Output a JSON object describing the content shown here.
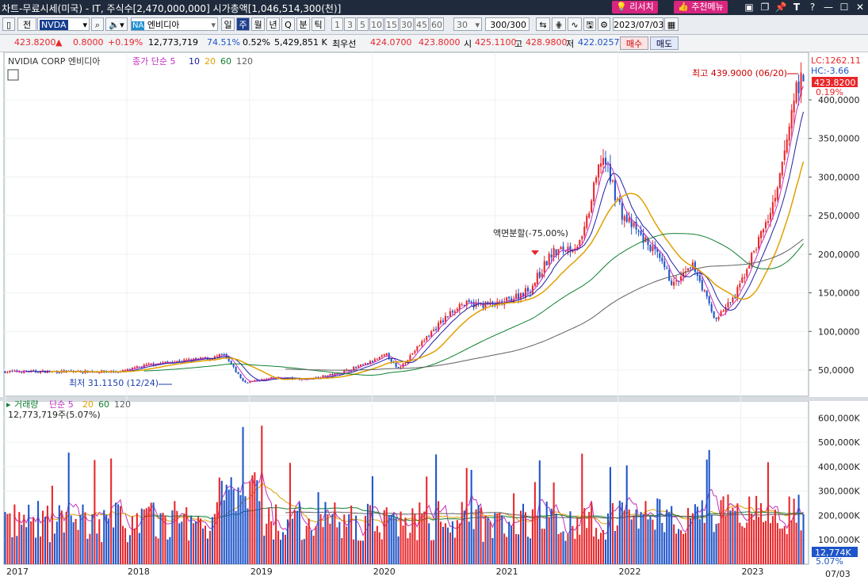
{
  "window": {
    "title": "차트-무료시세(미국) - IT, 주식수[2,470,000,000] 시가총액[1,046,514,300(천)]",
    "research_btn": "리서치",
    "recommend_btn": "추천메뉴"
  },
  "toolbar": {
    "jeon_label": "전",
    "symbol_value": "NVDA",
    "market_tag": "NA",
    "stock_name": "엔비디아",
    "period_tabs": [
      "일",
      "주",
      "월",
      "년",
      "Q",
      "분",
      "틱"
    ],
    "active_period": "주",
    "interval_buttons": [
      "1",
      "3",
      "5",
      "10",
      "15",
      "30",
      "45",
      "60"
    ],
    "interval_select": "30",
    "count_value": "300/300",
    "date_value": "2023/07/03"
  },
  "quote": {
    "price": "423.8200",
    "up_arrow": "▲",
    "change": "0.8000",
    "change_pct": "+0.19%",
    "volume": "12,773,719",
    "ratio1": "74.51%",
    "ratio2": "0.52%",
    "amount": "5,429,851 K",
    "best_bid_label": "최우선",
    "best_ask": "424.0700",
    "best_bid": "423.8000",
    "open_label": "시",
    "open": "425.1100",
    "high_label": "고",
    "high": "428.9800",
    "low_label": "저",
    "low": "422.0257",
    "buy_btn": "매수",
    "sell_btn": "매도"
  },
  "price_panel": {
    "legend_name": "NVIDIA CORP  엔비디아",
    "legend_ma": "종가 단순 5",
    "ma_periods": [
      "10",
      "20",
      "60",
      "120"
    ],
    "lc_label": "LC:1262.11",
    "hc_label": "HC:-3.66",
    "max_label": "최고 439.9000 (06/20)",
    "min_label": "최저 31.1150 (12/24)",
    "split_label": "액면분할(-75.00%)",
    "last_price_tag": "423.8200",
    "last_pct": "0.19%",
    "y_ticks": [
      "400,0000",
      "350,0000",
      "300,0000",
      "250,0000",
      "200,0000",
      "150,0000",
      "100,0000",
      "50,0000"
    ]
  },
  "volume_panel": {
    "legend_name": "거래량",
    "legend_ma": "단순 5",
    "ma_periods": [
      "20",
      "60",
      "120"
    ],
    "current": "12,773,719주(5.07%)",
    "last_tag": "12,774K",
    "last_pct": "5.07%",
    "y_ticks": [
      "600,000K",
      "500,000K",
      "400,000K",
      "300,000K",
      "200,000K",
      "100,000K"
    ]
  },
  "x_axis": {
    "ticks": [
      "2017",
      "2018",
      "2019",
      "2020",
      "2021",
      "2022",
      "2023"
    ],
    "last_label": "07/03"
  },
  "colors": {
    "up": "#e8262a",
    "down": "#1d54c8",
    "ma5": "#c030c0",
    "ma10": "#2020a0",
    "ma20": "#e0a000",
    "ma60": "#108030",
    "ma120": "#606060"
  },
  "chart_data": {
    "type": "candlestick",
    "frequency": "weekly",
    "y_range": [
      0,
      450
    ],
    "volume_range_k": [
      0,
      650000
    ],
    "price_anchors": [
      {
        "date": "2017-12",
        "close": 48
      },
      {
        "date": "2018-03",
        "close": 58
      },
      {
        "date": "2018-06",
        "close": 62
      },
      {
        "date": "2018-09",
        "close": 66
      },
      {
        "date": "2018-10",
        "close": 70
      },
      {
        "date": "2018-12",
        "close": 34
      },
      {
        "date": "2019-03",
        "close": 40
      },
      {
        "date": "2019-06",
        "close": 38
      },
      {
        "date": "2019-09",
        "close": 45
      },
      {
        "date": "2019-12",
        "close": 58
      },
      {
        "date": "2020-02",
        "close": 70
      },
      {
        "date": "2020-03",
        "close": 50
      },
      {
        "date": "2020-06",
        "close": 95
      },
      {
        "date": "2020-09",
        "close": 135
      },
      {
        "date": "2021-01",
        "close": 135
      },
      {
        "date": "2021-04",
        "close": 155
      },
      {
        "date": "2021-06",
        "close": 200
      },
      {
        "date": "2021-09",
        "close": 215
      },
      {
        "date": "2021-11",
        "close": 330
      },
      {
        "date": "2022-01",
        "close": 250
      },
      {
        "date": "2022-04",
        "close": 205
      },
      {
        "date": "2022-06",
        "close": 160
      },
      {
        "date": "2022-08",
        "close": 185
      },
      {
        "date": "2022-10",
        "close": 115
      },
      {
        "date": "2022-12",
        "close": 145
      },
      {
        "date": "2023-02",
        "close": 210
      },
      {
        "date": "2023-04",
        "close": 270
      },
      {
        "date": "2023-06",
        "close": 420
      },
      {
        "date": "2023-07-03",
        "close": 423.82
      }
    ],
    "annotations": {
      "high": {
        "value": 439.9,
        "date": "06/20"
      },
      "low": {
        "value": 31.115,
        "date": "12/24"
      },
      "stock_split": "-75.00%"
    },
    "moving_averages": [
      "MA5",
      "MA10",
      "MA20",
      "MA60",
      "MA120"
    ]
  }
}
